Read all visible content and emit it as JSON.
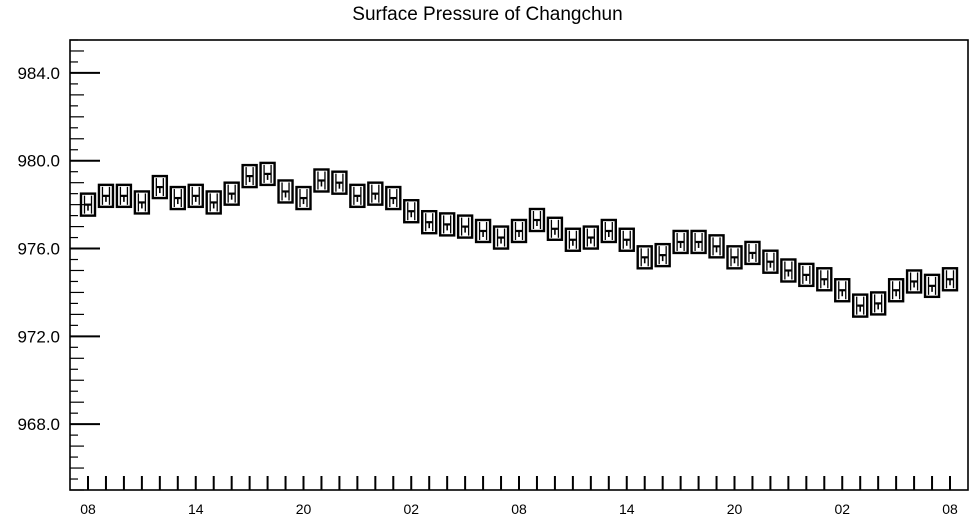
{
  "chart_data": {
    "type": "box",
    "title": "Surface Pressure of Changchun",
    "xlabel": "",
    "ylabel": "",
    "ylim": [
      965.0,
      985.5
    ],
    "y_ticks": [
      968.0,
      972.0,
      976.0,
      980.0,
      984.0
    ],
    "y_tick_labels": [
      "968.0",
      "972.0",
      "976.0",
      "980.0",
      "984.0"
    ],
    "x_tick_labels": [
      "08",
      "14",
      "20",
      "02",
      "08",
      "14",
      "20",
      "02",
      "08"
    ],
    "x_tick_hours": [
      0,
      6,
      12,
      18,
      24,
      30,
      36,
      42,
      48
    ],
    "grid": false,
    "series": [
      {
        "hours": [
          0,
          1,
          2,
          3,
          4,
          5,
          6,
          7,
          8,
          9,
          10,
          11,
          12,
          13,
          14,
          15,
          16,
          17,
          18,
          19,
          20,
          21,
          22,
          23,
          24,
          25,
          26,
          27,
          28,
          29,
          30,
          31,
          32,
          33,
          34,
          35,
          36,
          37,
          38,
          39,
          40,
          41,
          42,
          43,
          44,
          45,
          46,
          47,
          48
        ],
        "values": [
          978.0,
          978.4,
          978.4,
          978.1,
          978.8,
          978.3,
          978.4,
          978.1,
          978.5,
          979.3,
          979.4,
          978.6,
          978.3,
          979.1,
          979.0,
          978.4,
          978.5,
          978.3,
          977.7,
          977.2,
          977.1,
          977.0,
          976.8,
          976.5,
          976.8,
          977.3,
          976.9,
          976.4,
          976.5,
          976.8,
          976.4,
          975.6,
          975.7,
          976.3,
          976.3,
          976.1,
          975.6,
          975.8,
          975.4,
          975.0,
          974.8,
          974.6,
          974.1,
          973.4,
          973.5,
          974.1,
          974.5,
          974.3,
          974.6
        ]
      }
    ]
  }
}
